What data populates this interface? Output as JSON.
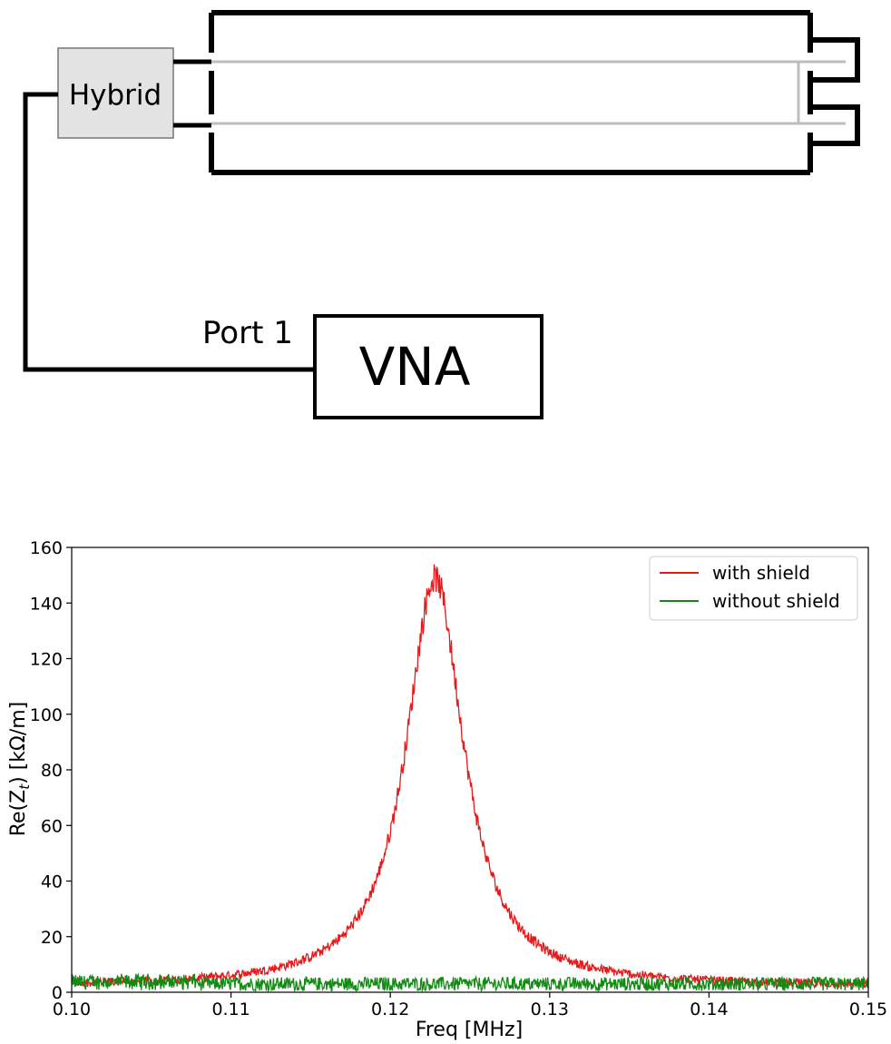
{
  "diagram": {
    "hybrid_label": "Hybrid",
    "port_label": "Port 1",
    "vna_label": "VNA"
  },
  "chart_data": {
    "type": "line",
    "xlabel": "Freq [MHz]",
    "ylabel_main": "Re(Z",
    "ylabel_sub": "t",
    "ylabel_tail": ") [kΩ/m]",
    "xlim": [
      0.1,
      0.15
    ],
    "ylim": [
      0,
      160
    ],
    "xticks": [
      0.1,
      0.11,
      0.12,
      0.13,
      0.14,
      0.15
    ],
    "xtick_labels": [
      "0.10",
      "0.11",
      "0.12",
      "0.13",
      "0.14",
      "0.15"
    ],
    "yticks": [
      0,
      20,
      40,
      60,
      80,
      100,
      120,
      140,
      160
    ],
    "ytick_labels": [
      "0",
      "20",
      "40",
      "60",
      "80",
      "100",
      "120",
      "140",
      "160"
    ],
    "legend_position": "top-right",
    "series": [
      {
        "name": "with shield",
        "color": "#e41a1c",
        "peak_x": 0.1228,
        "peak_y": 147,
        "half_width": 0.0022,
        "baseline": 2.0,
        "noise": 1.5
      },
      {
        "name": "without shield",
        "color": "#138a13",
        "mean": 3.0,
        "noise": 2.5
      }
    ]
  }
}
